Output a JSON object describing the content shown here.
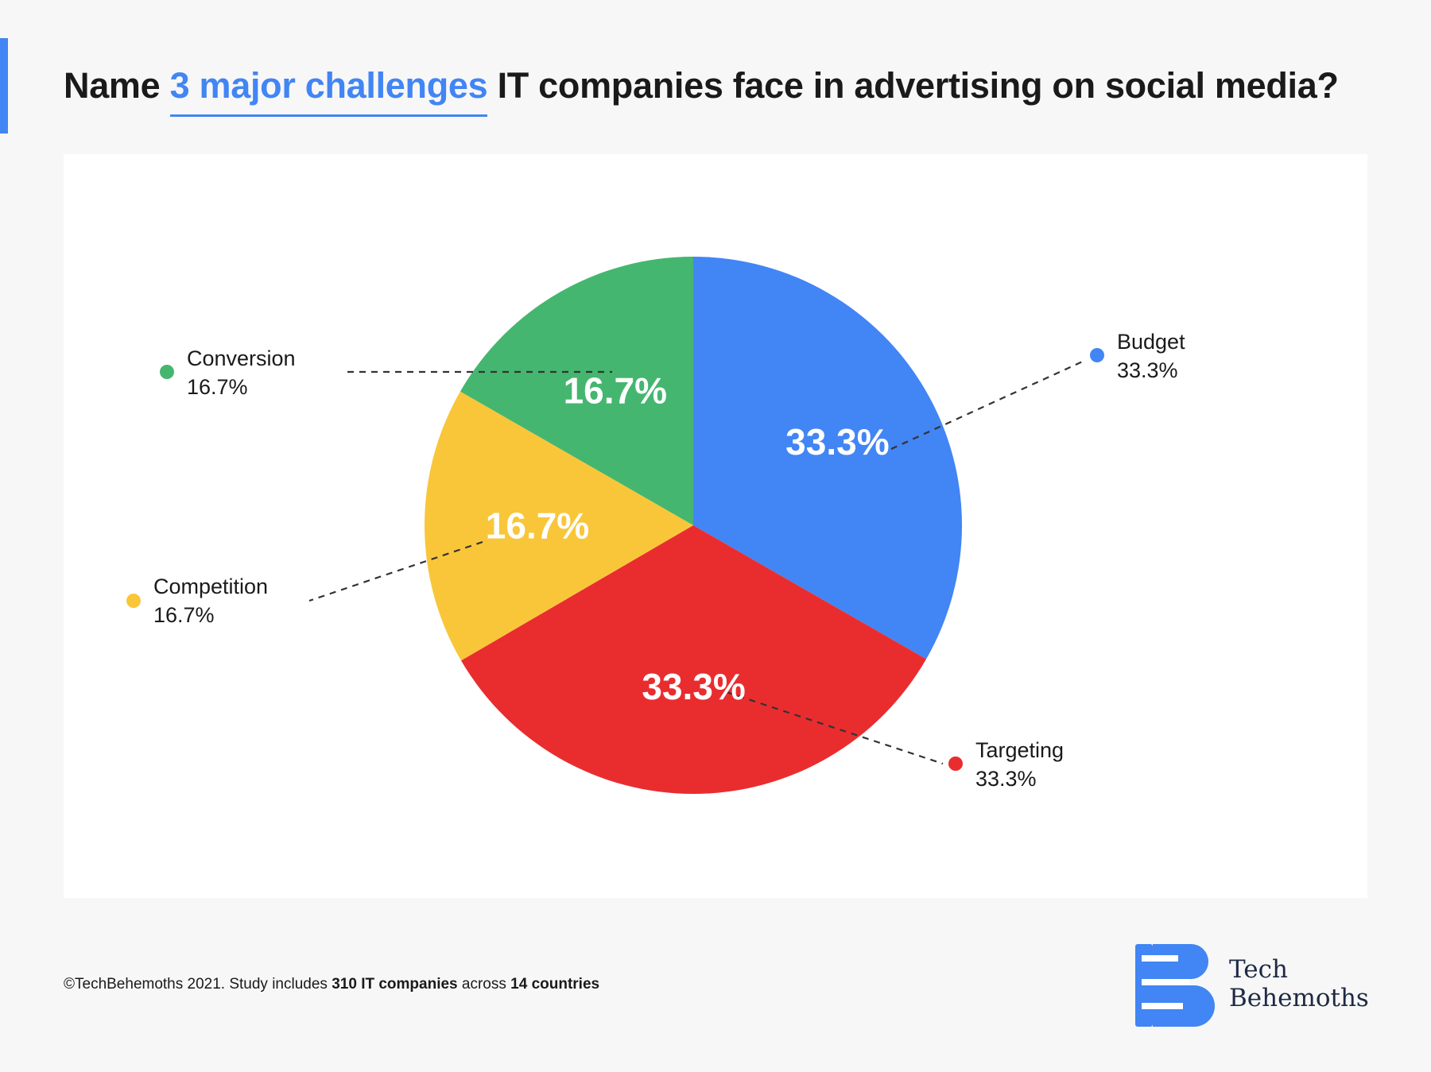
{
  "header": {
    "title_prefix": "Name",
    "title_highlight": "3 major challenges",
    "title_suffix": "IT companies face in advertising on social media?"
  },
  "colors": {
    "accent": "#4285f4",
    "budget": "#4285f4",
    "targeting": "#e92d2f",
    "competition": "#f9c63a",
    "conversion": "#45b66f"
  },
  "chart_data": {
    "type": "pie",
    "start_angle_deg": 0,
    "direction": "clockwise",
    "slices": [
      {
        "name": "Budget",
        "value": 33.3,
        "label": "33.3%",
        "color": "#4285f4"
      },
      {
        "name": "Targeting",
        "value": 33.3,
        "label": "33.3%",
        "color": "#e92d2f"
      },
      {
        "name": "Competition",
        "value": 16.7,
        "label": "16.7%",
        "color": "#f9c63a"
      },
      {
        "name": "Conversion",
        "value": 16.7,
        "label": "16.7%",
        "color": "#45b66f"
      }
    ],
    "legend_placement": "callouts around pie"
  },
  "footer": {
    "copyright": "©TechBehemoths 2021. Study includes",
    "companies": "310 IT companies",
    "across": "across",
    "countries": "14 countries"
  },
  "logo": {
    "line1": "Tech",
    "line2": "Behemoths",
    "icon": "tech-behemoths-logo-icon"
  }
}
